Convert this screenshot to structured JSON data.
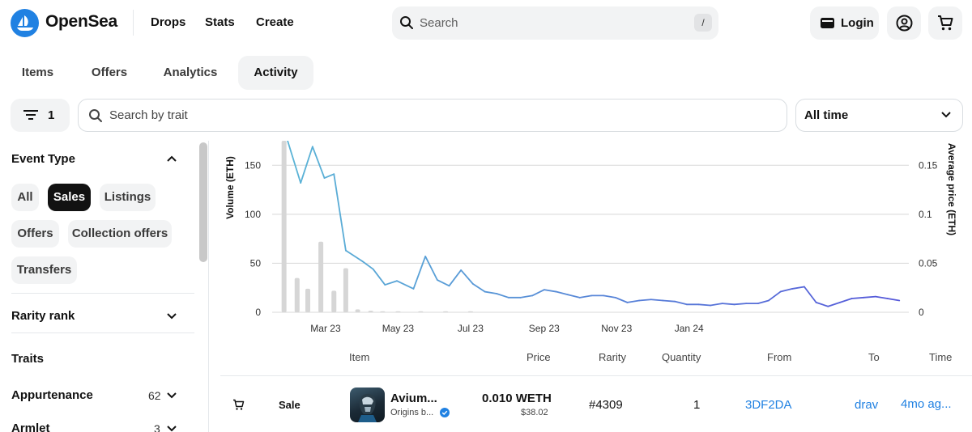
{
  "header": {
    "brand": "OpenSea",
    "nav": [
      "Drops",
      "Stats",
      "Create"
    ],
    "search_placeholder": "Search",
    "search_shortcut": "/",
    "login_label": "Login"
  },
  "tabs": [
    {
      "label": "Items",
      "active": false
    },
    {
      "label": "Offers",
      "active": false
    },
    {
      "label": "Analytics",
      "active": false
    },
    {
      "label": "Activity",
      "active": true
    }
  ],
  "filters": {
    "filter_count": "1",
    "trait_search_placeholder": "Search by trait",
    "time_range": "All time"
  },
  "sidebar": {
    "event_type_title": "Event Type",
    "event_types": [
      {
        "label": "All",
        "active": false
      },
      {
        "label": "Sales",
        "active": true
      },
      {
        "label": "Listings",
        "active": false
      },
      {
        "label": "Offers",
        "active": false
      },
      {
        "label": "Collection offers",
        "active": false
      },
      {
        "label": "Transfers",
        "active": false
      }
    ],
    "rarity_title": "Rarity rank",
    "traits_title": "Traits",
    "trait_groups": [
      {
        "label": "Appurtenance",
        "count": "62"
      },
      {
        "label": "Armlet",
        "count": "3"
      }
    ]
  },
  "chart_data": {
    "type": "bar+line",
    "y_left_label": "Volume (ETH)",
    "y_right_label": "Average price (ETH)",
    "y_left_ticks": [
      "0",
      "50",
      "100",
      "150"
    ],
    "y_right_ticks": [
      "0",
      "0.05",
      "0.1",
      "0.15"
    ],
    "y_left_range": [
      0,
      175
    ],
    "y_right_range": [
      0,
      0.175
    ],
    "x_ticks": [
      "Mar 23",
      "May 23",
      "Jul 23",
      "Sep 23",
      "Nov 23",
      "Jan 24"
    ],
    "grid": true,
    "volume_bars": [
      {
        "x": "2023-01-25",
        "value": 175
      },
      {
        "x": "2023-02-05",
        "value": 35
      },
      {
        "x": "2023-02-14",
        "value": 24
      },
      {
        "x": "2023-02-25",
        "value": 72
      },
      {
        "x": "2023-03-08",
        "value": 22
      },
      {
        "x": "2023-03-18",
        "value": 45
      },
      {
        "x": "2023-03-28",
        "value": 3
      },
      {
        "x": "2023-04-08",
        "value": 1.5
      },
      {
        "x": "2023-04-18",
        "value": 1
      },
      {
        "x": "2023-05-01",
        "value": 1
      },
      {
        "x": "2023-05-20",
        "value": 1
      },
      {
        "x": "2023-06-10",
        "value": 1
      },
      {
        "x": "2023-07-01",
        "value": 1
      }
    ],
    "average_price": [
      {
        "x": "2023-01-28",
        "value": 0.175
      },
      {
        "x": "2023-02-08",
        "value": 0.132
      },
      {
        "x": "2023-02-18",
        "value": 0.169
      },
      {
        "x": "2023-02-28",
        "value": 0.137
      },
      {
        "x": "2023-03-08",
        "value": 0.141
      },
      {
        "x": "2023-03-18",
        "value": 0.063
      },
      {
        "x": "2023-04-01",
        "value": 0.052
      },
      {
        "x": "2023-04-10",
        "value": 0.044
      },
      {
        "x": "2023-04-20",
        "value": 0.028
      },
      {
        "x": "2023-04-30",
        "value": 0.032
      },
      {
        "x": "2023-05-14",
        "value": 0.024
      },
      {
        "x": "2023-05-24",
        "value": 0.057
      },
      {
        "x": "2023-06-03",
        "value": 0.033
      },
      {
        "x": "2023-06-13",
        "value": 0.027
      },
      {
        "x": "2023-06-23",
        "value": 0.043
      },
      {
        "x": "2023-07-03",
        "value": 0.029
      },
      {
        "x": "2023-07-13",
        "value": 0.021
      },
      {
        "x": "2023-07-23",
        "value": 0.019
      },
      {
        "x": "2023-08-02",
        "value": 0.015
      },
      {
        "x": "2023-08-12",
        "value": 0.015
      },
      {
        "x": "2023-08-22",
        "value": 0.017
      },
      {
        "x": "2023-09-01",
        "value": 0.023
      },
      {
        "x": "2023-09-11",
        "value": 0.021
      },
      {
        "x": "2023-09-21",
        "value": 0.018
      },
      {
        "x": "2023-10-01",
        "value": 0.015
      },
      {
        "x": "2023-10-11",
        "value": 0.017
      },
      {
        "x": "2023-10-21",
        "value": 0.017
      },
      {
        "x": "2023-10-31",
        "value": 0.015
      },
      {
        "x": "2023-11-10",
        "value": 0.01
      },
      {
        "x": "2023-11-20",
        "value": 0.012
      },
      {
        "x": "2023-11-30",
        "value": 0.013
      },
      {
        "x": "2023-12-10",
        "value": 0.012
      },
      {
        "x": "2023-12-20",
        "value": 0.011
      },
      {
        "x": "2023-12-30",
        "value": 0.008
      },
      {
        "x": "2024-01-09",
        "value": 0.008
      },
      {
        "x": "2024-01-19",
        "value": 0.007
      },
      {
        "x": "2024-01-29",
        "value": 0.009
      },
      {
        "x": "2024-02-08",
        "value": 0.008
      },
      {
        "x": "2024-02-18",
        "value": 0.009
      },
      {
        "x": "2024-02-28",
        "value": 0.009
      },
      {
        "x": "2024-03-08",
        "value": 0.012
      },
      {
        "x": "2024-03-18",
        "value": 0.021
      },
      {
        "x": "2024-03-28",
        "value": 0.024
      },
      {
        "x": "2024-04-07",
        "value": 0.026
      },
      {
        "x": "2024-04-17",
        "value": 0.01
      },
      {
        "x": "2024-04-27",
        "value": 0.006
      },
      {
        "x": "2024-05-07",
        "value": 0.01
      },
      {
        "x": "2024-05-17",
        "value": 0.014
      },
      {
        "x": "2024-05-27",
        "value": 0.015
      },
      {
        "x": "2024-06-06",
        "value": 0.016
      },
      {
        "x": "2024-06-16",
        "value": 0.014
      },
      {
        "x": "2024-06-26",
        "value": 0.012
      }
    ],
    "colors": {
      "bars": "#d6d6d6",
      "line_early": "#5ab3d6",
      "line_late": "#5558d9",
      "grid": "#d8d8d8"
    }
  },
  "table": {
    "headers": [
      "Item",
      "Price",
      "Rarity",
      "Quantity",
      "From",
      "To",
      "Time"
    ],
    "rows": [
      {
        "event": "Sale",
        "item_name": "Avium...",
        "collection": "Origins b...",
        "price": "0.010 WETH",
        "price_usd": "$38.02",
        "rarity": "#4309",
        "quantity": "1",
        "from": "3DF2DA",
        "to": "drav",
        "time": "4mo ag..."
      }
    ]
  }
}
